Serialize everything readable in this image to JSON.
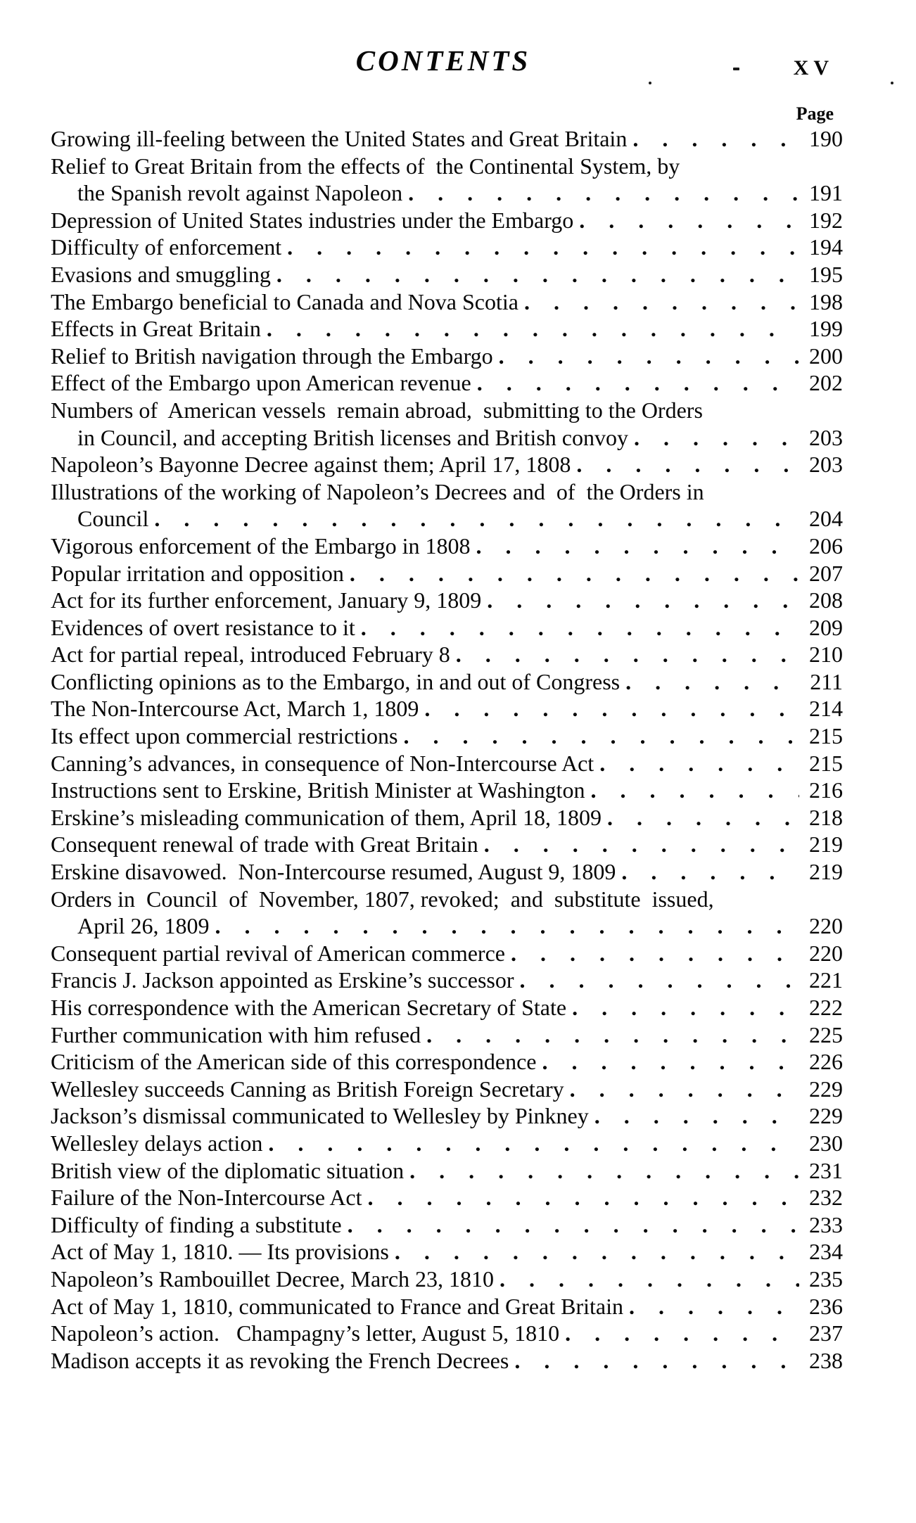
{
  "header": {
    "title": "CONTENTS",
    "folio": "XV",
    "page_label": "Page"
  },
  "toc": {
    "rows": [
      {
        "text": "Growing ill-feeling between the United States and Great Britain",
        "indent": false,
        "page": "190"
      },
      {
        "text": "Relief to Great Britain from the effects of  the Continental System, by",
        "indent": false,
        "page": ""
      },
      {
        "text": "the Spanish revolt against Napoleon",
        "indent": true,
        "page": "191"
      },
      {
        "text": "Depression of United States industries under the Embargo",
        "indent": false,
        "page": "192"
      },
      {
        "text": "Difficulty of enforcement",
        "indent": false,
        "page": "194"
      },
      {
        "text": "Evasions and smuggling",
        "indent": false,
        "page": "195"
      },
      {
        "text": "The Embargo beneficial to Canada and Nova Scotia",
        "indent": false,
        "page": "198"
      },
      {
        "text": "Effects in Great Britain",
        "indent": false,
        "page": "199"
      },
      {
        "text": "Relief to British navigation through the Embargo",
        "indent": false,
        "page": "200"
      },
      {
        "text": "Effect of the Embargo upon American revenue",
        "indent": false,
        "page": "202"
      },
      {
        "text": "Numbers of  American vessels  remain abroad,  submitting to the Orders",
        "indent": false,
        "page": ""
      },
      {
        "text": "in Council, and accepting British licenses and British convoy",
        "indent": true,
        "page": "203"
      },
      {
        "text": "Napoleon’s Bayonne Decree against them; April 17, 1808",
        "indent": false,
        "page": "203"
      },
      {
        "text": "Illustrations of the working of Napoleon’s Decrees and  of  the Orders in",
        "indent": false,
        "page": ""
      },
      {
        "text": "Council",
        "indent": true,
        "page": "204"
      },
      {
        "text": "Vigorous enforcement of the Embargo in 1808",
        "indent": false,
        "page": "206"
      },
      {
        "text": "Popular irritation and opposition",
        "indent": false,
        "page": "207"
      },
      {
        "text": "Act for its further enforcement, January 9, 1809",
        "indent": false,
        "page": "208"
      },
      {
        "text": "Evidences of overt resistance to it",
        "indent": false,
        "page": "209"
      },
      {
        "text": "Act for partial repeal, introduced February 8",
        "indent": false,
        "page": "210"
      },
      {
        "text": "Conflicting opinions as to the Embargo, in and out of Congress",
        "indent": false,
        "page": "211"
      },
      {
        "text": "The Non-Intercourse Act, March 1, 1809",
        "indent": false,
        "page": "214"
      },
      {
        "text": "Its effect upon commercial restrictions",
        "indent": false,
        "page": "215"
      },
      {
        "text": "Canning’s advances, in consequence of Non-Intercourse Act",
        "indent": false,
        "page": "215"
      },
      {
        "text": "Instructions sent to Erskine, British Minister at Washington",
        "indent": false,
        "page": "216"
      },
      {
        "text": "Erskine’s misleading communication of them, April 18, 1809",
        "indent": false,
        "page": "218"
      },
      {
        "text": "Consequent renewal of trade with Great Britain",
        "indent": false,
        "page": "219"
      },
      {
        "text": "Erskine disavowed.  Non-Intercourse resumed, August 9, 1809",
        "indent": false,
        "page": "219"
      },
      {
        "text": "Orders in  Council  of  November, 1807, revoked;  and  substitute  issued,",
        "indent": false,
        "page": ""
      },
      {
        "text": "April 26, 1809",
        "indent": true,
        "page": "220"
      },
      {
        "text": "Consequent partial revival of American commerce",
        "indent": false,
        "page": "220"
      },
      {
        "text": "Francis J. Jackson appointed as Erskine’s successor",
        "indent": false,
        "page": "221"
      },
      {
        "text": "His correspondence with the American Secretary of State",
        "indent": false,
        "page": "222"
      },
      {
        "text": "Further communication with him refused",
        "indent": false,
        "page": "225"
      },
      {
        "text": "Criticism of the American side of this correspondence",
        "indent": false,
        "page": "226"
      },
      {
        "text": "Wellesley succeeds Canning as British Foreign Secretary",
        "indent": false,
        "page": "229"
      },
      {
        "text": "Jackson’s dismissal communicated to Wellesley by Pinkney",
        "indent": false,
        "page": "229"
      },
      {
        "text": "Wellesley delays action",
        "indent": false,
        "page": "230"
      },
      {
        "text": "British view of the diplomatic situation",
        "indent": false,
        "page": "231"
      },
      {
        "text": "Failure of the Non-Intercourse Act",
        "indent": false,
        "page": "232"
      },
      {
        "text": "Difficulty of finding a substitute",
        "indent": false,
        "page": "233"
      },
      {
        "text": "Act of May 1, 1810. — Its provisions",
        "indent": false,
        "page": "234"
      },
      {
        "text": "Napoleon’s Rambouillet Decree, March 23, 1810",
        "indent": false,
        "page": "235"
      },
      {
        "text": "Act of May 1, 1810, communicated to France and Great Britain",
        "indent": false,
        "page": "236"
      },
      {
        "text": "Napoleon’s action.   Champagny’s letter, August 5, 1810",
        "indent": false,
        "page": "237"
      },
      {
        "text": "Madison accepts it as revoking the French Decrees",
        "indent": false,
        "page": "238"
      }
    ]
  }
}
